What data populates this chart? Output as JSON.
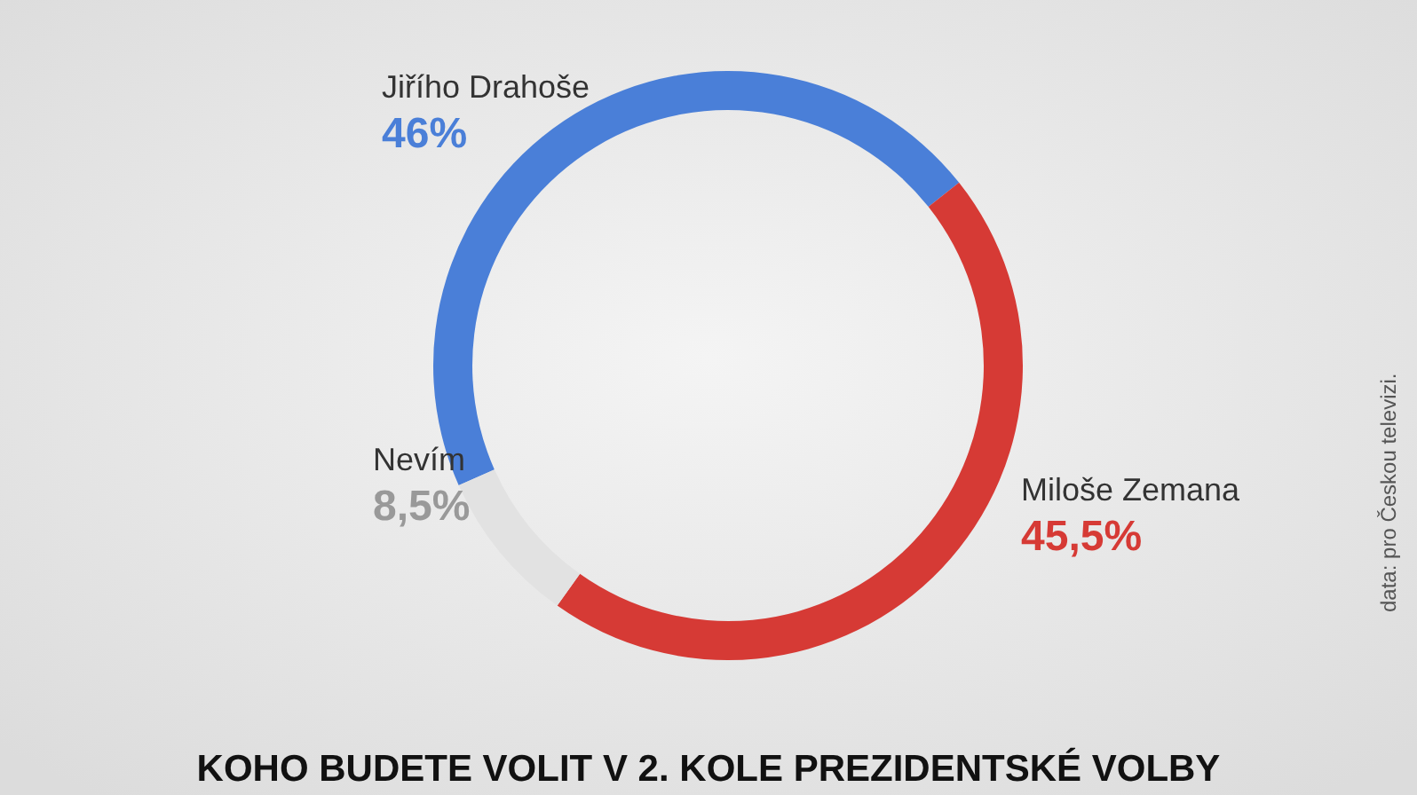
{
  "chart_data": {
    "type": "donut",
    "title": "KOHO BUDETE VOLIT V 2. KOLE PREZIDENTSKÉ VOLBY",
    "categories": [
      "Jiřího Drahoše",
      "Miloše Zemana",
      "Nevím"
    ],
    "values": [
      46,
      45.5,
      8.5
    ],
    "value_labels": [
      "46%",
      "45,5%",
      "8,5%"
    ],
    "colors": [
      "#4a7fd8",
      "#d63a35",
      "#e2e2e2"
    ],
    "annotations": [
      "data: pro Českou televizi."
    ]
  }
}
